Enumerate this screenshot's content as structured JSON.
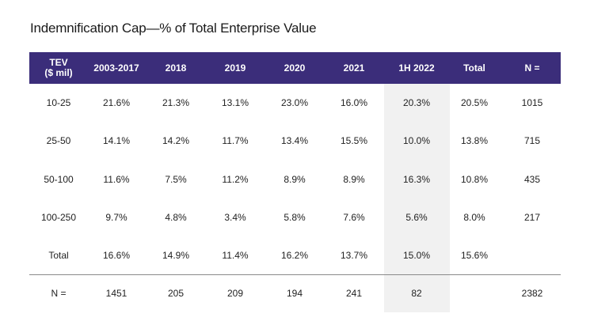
{
  "title": "Indemnification Cap—% of Total Enterprise Value",
  "accent_colors": {
    "header_bg": "#3b2d7a",
    "highlight_column_bg": "#f1f1f1"
  },
  "chart_data": {
    "type": "table",
    "title": "Indemnification Cap—% of Total Enterprise Value",
    "columns": [
      "TEV\n($ mil)",
      "2003-2017",
      "2018",
      "2019",
      "2020",
      "2021",
      "1H 2022",
      "Total",
      "N ="
    ],
    "highlighted_column": "1H 2022",
    "rows": [
      [
        "10-25",
        "21.6%",
        "21.3%",
        "13.1%",
        "23.0%",
        "16.0%",
        "20.3%",
        "20.5%",
        "1015"
      ],
      [
        "25-50",
        "14.1%",
        "14.2%",
        "11.7%",
        "13.4%",
        "15.5%",
        "10.0%",
        "13.8%",
        "715"
      ],
      [
        "50-100",
        "11.6%",
        "7.5%",
        "11.2%",
        "8.9%",
        "8.9%",
        "16.3%",
        "10.8%",
        "435"
      ],
      [
        "100-250",
        "9.7%",
        "4.8%",
        "3.4%",
        "5.8%",
        "7.6%",
        "5.6%",
        "8.0%",
        "217"
      ],
      [
        "Total",
        "16.6%",
        "14.9%",
        "11.4%",
        "16.2%",
        "13.7%",
        "15.0%",
        "15.6%",
        ""
      ],
      [
        "N =",
        "1451",
        "205",
        "209",
        "194",
        "241",
        "82",
        "",
        "2382"
      ]
    ]
  }
}
